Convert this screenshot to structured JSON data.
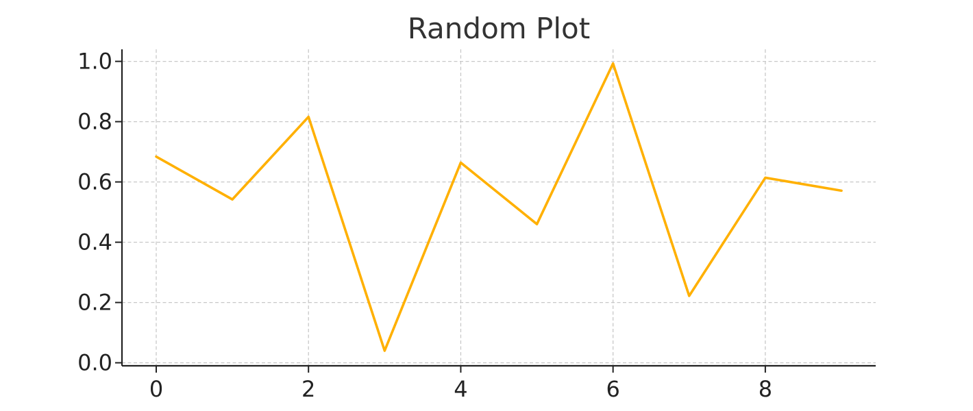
{
  "chart_data": {
    "type": "line",
    "title": "Random Plot",
    "xlabel": "",
    "ylabel": "",
    "x": [
      0,
      1,
      2,
      3,
      4,
      5,
      6,
      7,
      8,
      9
    ],
    "series": [
      {
        "values": [
          0.684,
          0.542,
          0.816,
          0.04,
          0.664,
          0.46,
          0.993,
          0.222,
          0.614,
          0.571
        ],
        "color": "#FFB000"
      }
    ],
    "xlim": [
      -0.45,
      9.45
    ],
    "ylim": [
      -0.01,
      1.04
    ],
    "xticks": [
      0,
      2,
      4,
      6,
      8
    ],
    "yticks": [
      0.0,
      0.2,
      0.4,
      0.6,
      0.8,
      1.0
    ],
    "xtick_labels": [
      "0",
      "2",
      "4",
      "6",
      "8"
    ],
    "ytick_labels": [
      "0.0",
      "0.2",
      "0.4",
      "0.6",
      "0.8",
      "1.0"
    ],
    "grid": true,
    "grid_style": "dashed",
    "legend": "none"
  }
}
